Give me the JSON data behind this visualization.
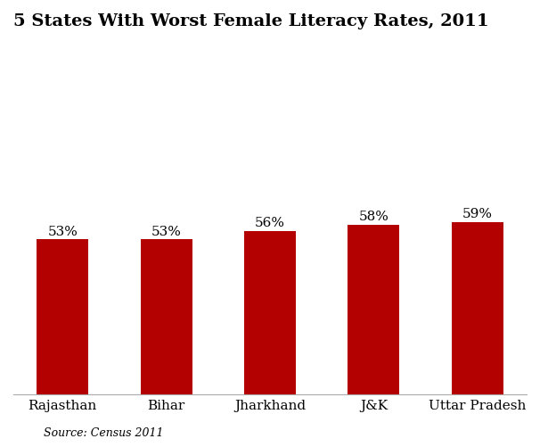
{
  "title": "5 States With Worst Female Literacy Rates, 2011",
  "categories": [
    "Rajasthan",
    "Bihar",
    "Jharkhand",
    "J&K",
    "Uttar Pradesh"
  ],
  "values": [
    53,
    53,
    56,
    58,
    59
  ],
  "labels": [
    "53%",
    "53%",
    "56%",
    "58%",
    "59%"
  ],
  "bar_color": "#b30000",
  "background_color": "#ffffff",
  "title_fontsize": 14,
  "label_fontsize": 11,
  "xtick_fontsize": 11,
  "source_text": "Source: Census 2011",
  "source_fontsize": 9,
  "ylim": [
    0,
    120
  ]
}
